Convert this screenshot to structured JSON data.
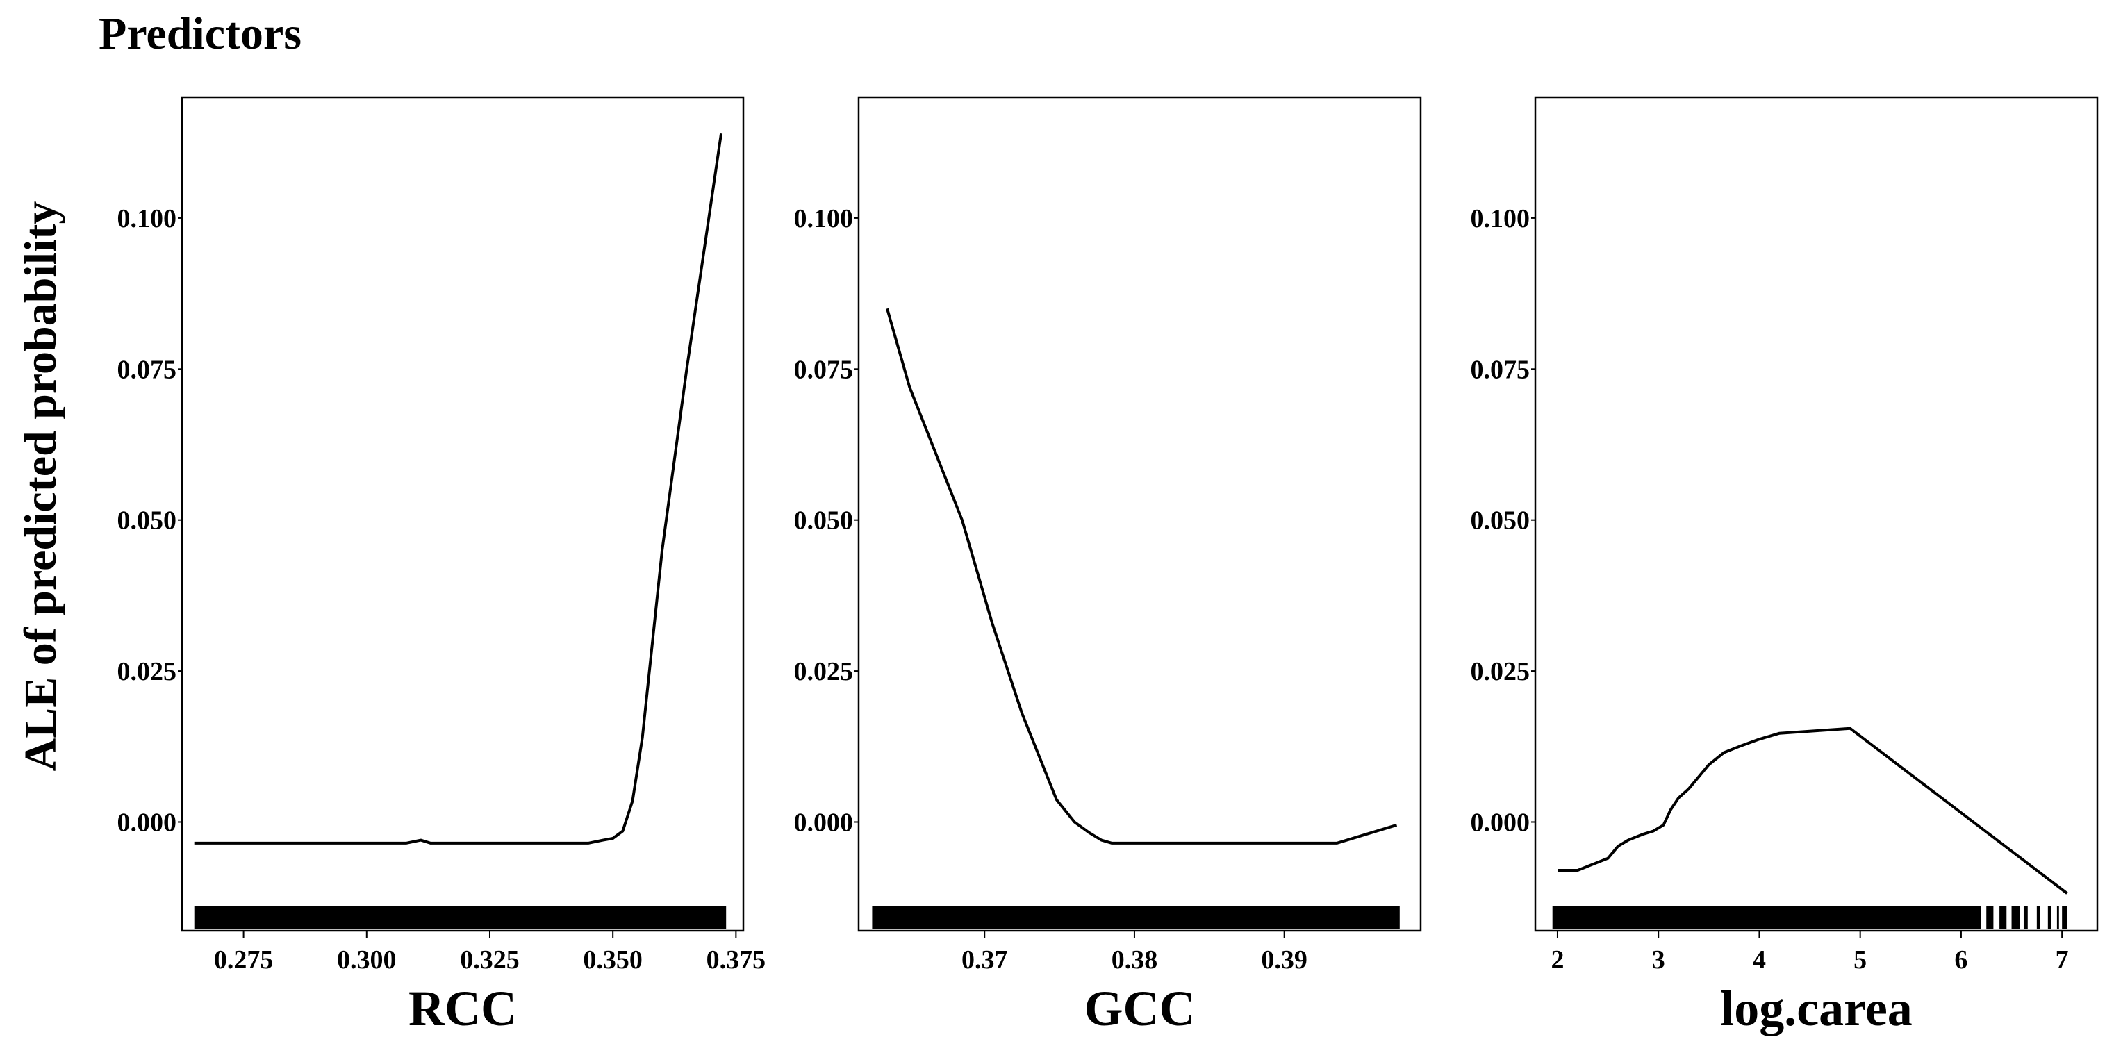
{
  "figure": {
    "title": "Predictors",
    "ylabel": "ALE of predicted probability",
    "colors": {
      "line": "#000000",
      "frame": "#000000",
      "rug": "#000000",
      "background": "#ffffff"
    }
  },
  "chart_data": [
    {
      "type": "line",
      "panel": "RCC",
      "xlabel": "RCC",
      "ylabel": "ALE of predicted probability",
      "xlim": [
        0.2625,
        0.3765
      ],
      "ylim": [
        -0.018,
        0.12
      ],
      "xticks": [
        0.275,
        0.3,
        0.325,
        0.35,
        0.375
      ],
      "xtick_labels": [
        "0.275",
        "0.300",
        "0.325",
        "0.350",
        "0.375"
      ],
      "yticks": [
        0.0,
        0.025,
        0.05,
        0.075,
        0.1
      ],
      "ytick_labels": [
        "0.000",
        "0.025",
        "0.050",
        "0.075",
        "0.100"
      ],
      "x": [
        0.265,
        0.3,
        0.308,
        0.311,
        0.313,
        0.33,
        0.345,
        0.348,
        0.35,
        0.352,
        0.354,
        0.356,
        0.36,
        0.365,
        0.372
      ],
      "y": [
        -0.0035,
        -0.0035,
        -0.0035,
        -0.003,
        -0.0035,
        -0.0035,
        -0.0035,
        -0.003,
        -0.0027,
        -0.0015,
        0.0035,
        0.014,
        0.045,
        0.075,
        0.114
      ],
      "rug": [
        [
          0.265,
          0.373
        ]
      ]
    },
    {
      "type": "line",
      "panel": "GCC",
      "xlabel": "GCC",
      "ylabel": "ALE of predicted probability",
      "xlim": [
        0.3616,
        0.3991
      ],
      "ylim": [
        -0.018,
        0.12
      ],
      "xticks": [
        0.37,
        0.38,
        0.39
      ],
      "xtick_labels": [
        "0.37",
        "0.38",
        "0.39"
      ],
      "yticks": [
        0.0,
        0.025,
        0.05,
        0.075,
        0.1
      ],
      "ytick_labels": [
        "0.000",
        "0.025",
        "0.050",
        "0.075",
        "0.100"
      ],
      "x": [
        0.3635,
        0.365,
        0.3685,
        0.3705,
        0.3725,
        0.3748,
        0.376,
        0.377,
        0.3778,
        0.3785,
        0.384,
        0.3915,
        0.3935,
        0.3975
      ],
      "y": [
        0.085,
        0.072,
        0.05,
        0.033,
        0.018,
        0.0037,
        0.0,
        -0.0018,
        -0.003,
        -0.0035,
        -0.0035,
        -0.0035,
        -0.0035,
        -0.0005
      ],
      "rug": [
        [
          0.3625,
          0.3977
        ]
      ]
    },
    {
      "type": "line",
      "panel": "log.carea",
      "xlabel": "log.carea",
      "ylabel": "ALE of predicted probability",
      "xlim": [
        1.78,
        7.35
      ],
      "ylim": [
        -0.018,
        0.12
      ],
      "xticks": [
        2,
        3,
        4,
        5,
        6,
        7
      ],
      "xtick_labels": [
        "2",
        "3",
        "4",
        "5",
        "6",
        "7"
      ],
      "yticks": [
        0.0,
        0.025,
        0.05,
        0.075,
        0.1
      ],
      "ytick_labels": [
        "0.000",
        "0.025",
        "0.050",
        "0.075",
        "0.100"
      ],
      "x": [
        2.0,
        2.2,
        2.35,
        2.5,
        2.6,
        2.7,
        2.85,
        2.95,
        3.05,
        3.12,
        3.2,
        3.3,
        3.4,
        3.5,
        3.65,
        3.8,
        4.0,
        4.2,
        4.9,
        7.05
      ],
      "y": [
        -0.008,
        -0.008,
        -0.007,
        -0.006,
        -0.004,
        -0.003,
        -0.002,
        -0.0015,
        -0.0005,
        0.002,
        0.004,
        0.0055,
        0.0075,
        0.0095,
        0.0115,
        0.0125,
        0.0137,
        0.0147,
        0.0155,
        -0.0118
      ],
      "rug": [
        [
          1.95,
          6.2
        ],
        [
          6.25,
          6.32
        ],
        [
          6.38,
          6.45
        ],
        [
          6.5,
          6.58
        ],
        [
          6.62,
          6.66
        ],
        [
          6.75,
          6.78
        ],
        [
          6.86,
          6.89
        ],
        [
          6.95,
          6.97
        ],
        [
          7.0,
          7.05
        ]
      ]
    }
  ]
}
